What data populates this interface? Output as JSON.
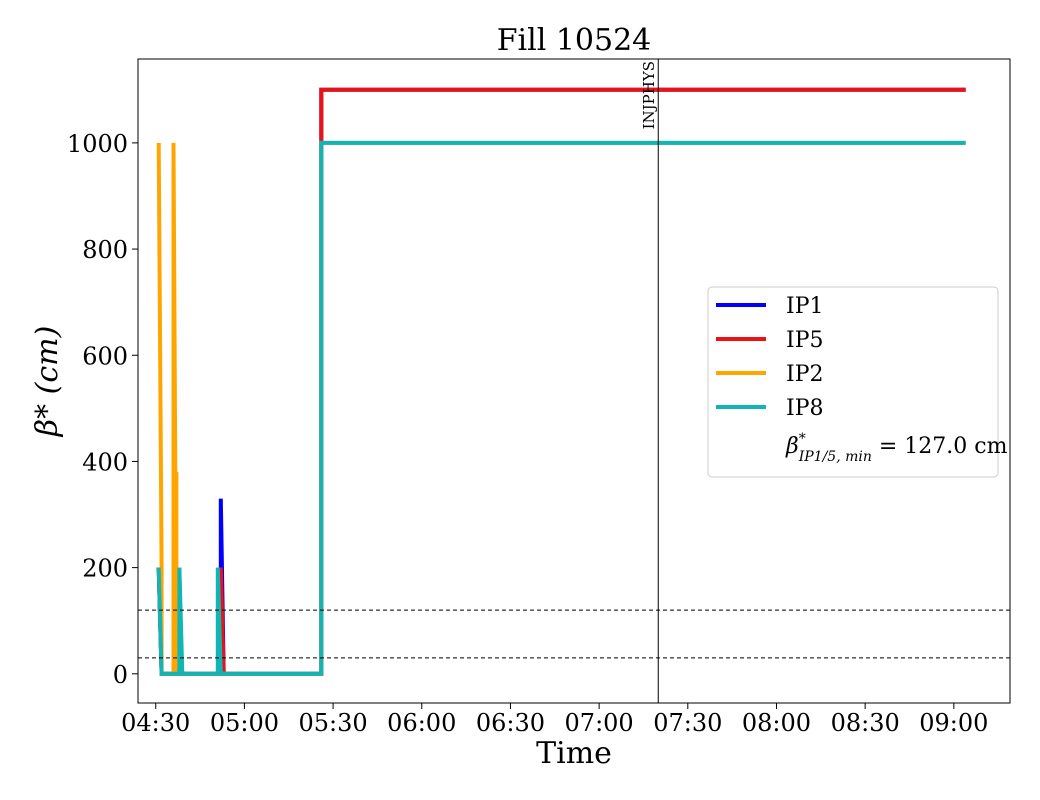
{
  "chart_data": {
    "type": "line",
    "title": "Fill 10524",
    "xlabel": "Time",
    "ylabel": "β* (cm)",
    "x_ticks": [
      "04:30",
      "05:00",
      "05:30",
      "06:00",
      "06:30",
      "07:00",
      "07:30",
      "08:00",
      "08:30",
      "09:00"
    ],
    "x_range": [
      "04:24",
      "09:19"
    ],
    "y_ticks": [
      0,
      200,
      400,
      600,
      800,
      1000
    ],
    "ylim": [
      -55,
      1158
    ],
    "grid": false,
    "legend_position": "center-right",
    "series": [
      {
        "name": "IP1",
        "color": "#0000ff",
        "points": [
          [
            "04:31",
            200
          ],
          [
            "04:32",
            0
          ],
          [
            "04:52",
            0
          ],
          [
            "04:52",
            330
          ],
          [
            "04:53",
            0
          ],
          [
            "05:26",
            0
          ],
          [
            "05:26",
            1100
          ],
          [
            "09:04",
            1100
          ]
        ]
      },
      {
        "name": "IP5",
        "color": "#ee1111",
        "points": [
          [
            "04:31",
            200
          ],
          [
            "04:32",
            0
          ],
          [
            "04:52",
            0
          ],
          [
            "04:52",
            200
          ],
          [
            "04:53",
            0
          ],
          [
            "05:26",
            0
          ],
          [
            "05:26",
            1100
          ],
          [
            "09:04",
            1100
          ]
        ]
      },
      {
        "name": "IP2",
        "color": "#ffa500",
        "points": [
          [
            "04:31",
            1000
          ],
          [
            "04:32",
            200
          ],
          [
            "04:32",
            0
          ],
          [
            "04:36",
            0
          ],
          [
            "04:36",
            1000
          ],
          [
            "04:37",
            0
          ],
          [
            "04:37",
            380
          ],
          [
            "04:37",
            0
          ],
          [
            "05:26",
            0
          ],
          [
            "05:26",
            1000
          ],
          [
            "09:04",
            1000
          ]
        ]
      },
      {
        "name": "IP8",
        "color": "#12b5b5",
        "points": [
          [
            "04:31",
            200
          ],
          [
            "04:32",
            0
          ],
          [
            "04:38",
            0
          ],
          [
            "04:38",
            200
          ],
          [
            "04:39",
            0
          ],
          [
            "04:51",
            0
          ],
          [
            "04:51",
            200
          ],
          [
            "04:52",
            0
          ],
          [
            "05:26",
            0
          ],
          [
            "05:26",
            1000
          ],
          [
            "09:04",
            1000
          ]
        ]
      }
    ],
    "hlines": [
      {
        "y": 120,
        "style": "dashed"
      },
      {
        "y": 30,
        "style": "dashed"
      }
    ],
    "vlines": [
      {
        "x": "07:20",
        "label": "INJPHYS"
      }
    ],
    "legend_extra_label": {
      "symbol": "β",
      "sup": "*",
      "sub": "IP1/5, min",
      "text": " = 127.0 cm"
    }
  }
}
